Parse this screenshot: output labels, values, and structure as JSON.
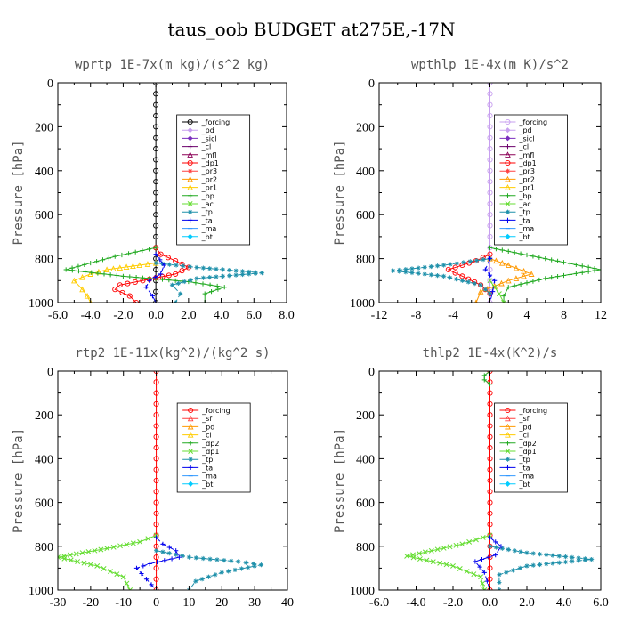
{
  "figure": {
    "title": "taus_oob  BUDGET at275E,-17N"
  },
  "chart_data": [
    {
      "type": "line",
      "title": "wprtp  1E-7x(m kg)/(s^2 kg)",
      "ylabel": "Pressure [hPa]",
      "xlim": [
        -6,
        8
      ],
      "ylim": [
        1000,
        0
      ],
      "xticks": [
        -6,
        -4,
        -2,
        0,
        2,
        4,
        6,
        8
      ],
      "xtick_labels": [
        "-6.0",
        "-4.0",
        "-2.0",
        "0.0",
        "2.0",
        "4.0",
        "6.0",
        "8.0"
      ],
      "yticks": [
        0,
        200,
        400,
        600,
        800,
        1000
      ],
      "legend": "top-right",
      "series": [
        {
          "name": "_forcing",
          "color": "#000000",
          "marker": "circle",
          "x": [
            0,
            0,
            0,
            0,
            0,
            0,
            0,
            0,
            0,
            0,
            0,
            0,
            0,
            0,
            0,
            0,
            0,
            0,
            0,
            0,
            0
          ],
          "y": [
            0,
            50,
            100,
            150,
            200,
            250,
            300,
            350,
            400,
            450,
            500,
            550,
            600,
            650,
            700,
            750,
            800,
            850,
            900,
            950,
            1000
          ]
        },
        {
          "name": "_pd",
          "color": "#c79fef",
          "marker": "diamond",
          "x": [],
          "y": []
        },
        {
          "name": "_sicl",
          "color": "#7b2fbe",
          "marker": "diamond",
          "x": [],
          "y": []
        },
        {
          "name": "_cl",
          "color": "#6b006b",
          "marker": "plus",
          "x": [],
          "y": []
        },
        {
          "name": "_mfl",
          "color": "#8b0057",
          "marker": "triangle",
          "x": [],
          "y": []
        },
        {
          "name": "_dp1",
          "color": "#ff0000",
          "marker": "circle",
          "x": [
            0,
            0.3,
            1.2,
            2.0,
            1.2,
            -0.8,
            -2.2,
            -2.5,
            -1.6,
            -1.2
          ],
          "y": [
            750,
            780,
            810,
            840,
            870,
            900,
            920,
            940,
            970,
            1000
          ]
        },
        {
          "name": "_pr3",
          "color": "#ff4040",
          "marker": "star",
          "x": [],
          "y": []
        },
        {
          "name": "_pr2",
          "color": "#ff9900",
          "marker": "triangle",
          "x": [],
          "y": []
        },
        {
          "name": "_pr1",
          "color": "#ffcc00",
          "marker": "triangle",
          "x": [
            0,
            -1.0,
            -3.0,
            -4.0,
            -5.0,
            -4.5,
            -4.2,
            -4.0
          ],
          "y": [
            820,
            830,
            850,
            870,
            900,
            940,
            970,
            1000
          ]
        },
        {
          "name": "_bp",
          "color": "#22aa22",
          "marker": "plus",
          "x": [
            0,
            -2.5,
            -5.5,
            -2.0,
            2.0,
            4.2,
            3.0,
            3.0
          ],
          "y": [
            750,
            790,
            850,
            880,
            905,
            930,
            960,
            1000
          ]
        },
        {
          "name": "_ac",
          "color": "#66dd33",
          "marker": "cross",
          "x": [],
          "y": []
        },
        {
          "name": "_tp",
          "color": "#1e90aa",
          "marker": "star",
          "x": [
            0,
            2.5,
            6.5,
            2.5,
            1.0,
            1.5,
            1.2
          ],
          "y": [
            820,
            840,
            865,
            890,
            920,
            960,
            1000
          ]
        },
        {
          "name": "_ta",
          "color": "#0000ee",
          "marker": "plus",
          "x": [
            0,
            0.5,
            0.3,
            -0.4,
            -0.6,
            -0.2,
            0
          ],
          "y": [
            780,
            830,
            870,
            900,
            930,
            970,
            1000
          ]
        },
        {
          "name": "_ma",
          "color": "#3399ff",
          "marker": "dash",
          "x": [],
          "y": []
        },
        {
          "name": "_bt",
          "color": "#00ccff",
          "marker": "diamond",
          "x": [],
          "y": []
        }
      ]
    },
    {
      "type": "line",
      "title": "wpthlp  1E-4x(m K)/s^2",
      "ylabel": "Pressure [hPa]",
      "xlim": [
        -12,
        12
      ],
      "ylim": [
        1000,
        0
      ],
      "xticks": [
        -12,
        -8,
        -4,
        0,
        4,
        8,
        12
      ],
      "xtick_labels": [
        "-12",
        "-8",
        "-4",
        "0",
        "4",
        "8",
        "12"
      ],
      "yticks": [
        0,
        200,
        400,
        600,
        800,
        1000
      ],
      "legend": "top-right",
      "series": [
        {
          "name": "_forcing",
          "color": "#c79fef",
          "marker": "circle",
          "x": [
            0,
            0,
            0,
            0,
            0,
            0,
            0,
            0,
            0,
            0,
            0,
            0,
            0,
            0,
            0,
            0,
            0,
            0,
            0,
            0,
            0
          ],
          "y": [
            0,
            50,
            100,
            150,
            200,
            250,
            300,
            350,
            400,
            450,
            500,
            550,
            600,
            650,
            700,
            750,
            800,
            850,
            900,
            950,
            1000
          ]
        },
        {
          "name": "_pd",
          "color": "#c79fef",
          "marker": "diamond",
          "x": [],
          "y": []
        },
        {
          "name": "_sicl",
          "color": "#7b2fbe",
          "marker": "diamond",
          "x": [],
          "y": []
        },
        {
          "name": "_cl",
          "color": "#6b006b",
          "marker": "plus",
          "x": [],
          "y": []
        },
        {
          "name": "_mfl",
          "color": "#8b0057",
          "marker": "triangle",
          "x": [],
          "y": []
        },
        {
          "name": "_dp1",
          "color": "#ff0000",
          "marker": "circle",
          "x": [
            0,
            -1.5,
            -4.5,
            -3.0,
            -1.0,
            0
          ],
          "y": [
            780,
            810,
            850,
            880,
            920,
            960
          ]
        },
        {
          "name": "_pr3",
          "color": "#ff4040",
          "marker": "star",
          "x": [],
          "y": []
        },
        {
          "name": "_pr2",
          "color": "#ff9900",
          "marker": "triangle",
          "x": [
            0,
            2.0,
            4.5,
            2.0,
            -1.0,
            -1.5
          ],
          "y": [
            800,
            830,
            870,
            900,
            950,
            1000
          ]
        },
        {
          "name": "_pr1",
          "color": "#ffcc00",
          "marker": "triangle",
          "x": [],
          "y": []
        },
        {
          "name": "_bp",
          "color": "#22aa22",
          "marker": "plus",
          "x": [
            0,
            6.0,
            12.0,
            6.0,
            2.0,
            1.5,
            1.5
          ],
          "y": [
            750,
            800,
            850,
            890,
            930,
            970,
            1000
          ]
        },
        {
          "name": "_ac",
          "color": "#66dd33",
          "marker": "cross",
          "x": [
            0,
            0.5,
            1.0,
            1.5
          ],
          "y": [
            900,
            930,
            960,
            1000
          ]
        },
        {
          "name": "_tp",
          "color": "#1e90aa",
          "marker": "star",
          "x": [
            0,
            -5.0,
            -10.5,
            -5.0,
            -1.0,
            0
          ],
          "y": [
            800,
            830,
            855,
            880,
            920,
            960
          ]
        },
        {
          "name": "_ta",
          "color": "#0000ee",
          "marker": "plus",
          "x": [
            0,
            -0.5,
            0.5,
            0.3,
            0
          ],
          "y": [
            800,
            850,
            900,
            950,
            1000
          ]
        },
        {
          "name": "_ma",
          "color": "#3399ff",
          "marker": "dash",
          "x": [],
          "y": []
        },
        {
          "name": "_bt",
          "color": "#00ccff",
          "marker": "diamond",
          "x": [],
          "y": []
        }
      ]
    },
    {
      "type": "line",
      "title": "rtp2  1E-11x(kg^2)/(kg^2 s)",
      "ylabel": "Pressure [hPa]",
      "xlim": [
        -30,
        40
      ],
      "ylim": [
        1000,
        0
      ],
      "xticks": [
        -30,
        -20,
        -10,
        0,
        10,
        20,
        30,
        40
      ],
      "xtick_labels": [
        "-30",
        "-20",
        "-10",
        "0",
        "10",
        "20",
        "30",
        "40"
      ],
      "yticks": [
        0,
        200,
        400,
        600,
        800,
        1000
      ],
      "legend": "top-right",
      "series": [
        {
          "name": "_forcing",
          "color": "#ff0000",
          "marker": "circle",
          "x": [
            0,
            0,
            0,
            0,
            0,
            0,
            0,
            0,
            0,
            0,
            0,
            0,
            0,
            0,
            0,
            0,
            0,
            0,
            0,
            0,
            0
          ],
          "y": [
            0,
            50,
            100,
            150,
            200,
            250,
            300,
            350,
            400,
            450,
            500,
            550,
            600,
            650,
            700,
            750,
            800,
            850,
            900,
            950,
            1000
          ]
        },
        {
          "name": "_sf",
          "color": "#ff4040",
          "marker": "triangle",
          "x": [],
          "y": []
        },
        {
          "name": "_pd",
          "color": "#ff9900",
          "marker": "triangle",
          "x": [],
          "y": []
        },
        {
          "name": "_cl",
          "color": "#ffcc00",
          "marker": "triangle",
          "x": [],
          "y": []
        },
        {
          "name": "_dp2",
          "color": "#22aa22",
          "marker": "plus",
          "x": [],
          "y": []
        },
        {
          "name": "_dp1",
          "color": "#66dd33",
          "marker": "cross",
          "x": [
            0,
            -5.0,
            -15.0,
            -30.0,
            -18.0,
            -10.0,
            -9.0,
            -8.0
          ],
          "y": [
            750,
            780,
            810,
            850,
            890,
            940,
            970,
            1000
          ]
        },
        {
          "name": "_tp",
          "color": "#1e90aa",
          "marker": "star",
          "x": [
            0,
            10.0,
            25.0,
            32.0,
            20.0,
            12.0,
            10.0
          ],
          "y": [
            820,
            850,
            870,
            885,
            920,
            960,
            1000
          ]
        },
        {
          "name": "_ta",
          "color": "#0000ee",
          "marker": "plus",
          "x": [
            0,
            2.0,
            6.0,
            7.0,
            -2.0,
            -6.0,
            -3.0,
            0
          ],
          "y": [
            760,
            790,
            820,
            850,
            880,
            900,
            950,
            1000
          ]
        },
        {
          "name": "_ma",
          "color": "#3399ff",
          "marker": "dash",
          "x": [],
          "y": []
        },
        {
          "name": "_bt",
          "color": "#00ccff",
          "marker": "diamond",
          "x": [],
          "y": []
        }
      ]
    },
    {
      "type": "line",
      "title": "thlp2  1E-4x(K^2)/s",
      "ylabel": "Pressure [hPa]",
      "xlim": [
        -6,
        6
      ],
      "ylim": [
        1000,
        0
      ],
      "xticks": [
        -6,
        -4,
        -2,
        0,
        2,
        4,
        6
      ],
      "xtick_labels": [
        "-6.0",
        "-4.0",
        "-2.0",
        "0.0",
        "2.0",
        "4.0",
        "6.0"
      ],
      "yticks": [
        0,
        200,
        400,
        600,
        800,
        1000
      ],
      "legend": "top-right",
      "series": [
        {
          "name": "_forcing",
          "color": "#ff0000",
          "marker": "circle",
          "x": [
            0,
            0,
            0,
            0,
            0,
            0,
            0,
            0,
            0,
            0,
            0,
            0,
            0,
            0,
            0,
            0,
            0,
            0,
            0,
            0,
            0
          ],
          "y": [
            0,
            50,
            100,
            150,
            200,
            250,
            300,
            350,
            400,
            450,
            500,
            550,
            600,
            650,
            700,
            750,
            800,
            850,
            900,
            950,
            1000
          ]
        },
        {
          "name": "_sf",
          "color": "#ff4040",
          "marker": "triangle",
          "x": [],
          "y": []
        },
        {
          "name": "_pd",
          "color": "#ff9900",
          "marker": "triangle",
          "x": [],
          "y": []
        },
        {
          "name": "_cl",
          "color": "#ffcc00",
          "marker": "triangle",
          "x": [],
          "y": []
        },
        {
          "name": "_dp2",
          "color": "#22aa22",
          "marker": "plus",
          "x": [
            0,
            -0.3,
            -0.3,
            0
          ],
          "y": [
            0,
            20,
            40,
            60
          ]
        },
        {
          "name": "_dp1",
          "color": "#66dd33",
          "marker": "cross",
          "x": [
            0,
            -1.5,
            -4.5,
            -2.0,
            -0.5,
            -0.3
          ],
          "y": [
            750,
            790,
            845,
            890,
            940,
            1000
          ]
        },
        {
          "name": "_tp",
          "color": "#1e90aa",
          "marker": "star",
          "x": [
            0,
            2.0,
            5.5,
            2.0,
            0.5,
            0.5
          ],
          "y": [
            800,
            830,
            860,
            890,
            930,
            1000
          ]
        },
        {
          "name": "_ta",
          "color": "#0000ee",
          "marker": "plus",
          "x": [
            0,
            0.6,
            0.3,
            -0.8,
            -0.3,
            0
          ],
          "y": [
            760,
            800,
            840,
            870,
            920,
            1000
          ]
        },
        {
          "name": "_ma",
          "color": "#3399ff",
          "marker": "dash",
          "x": [],
          "y": []
        },
        {
          "name": "_bt",
          "color": "#00ccff",
          "marker": "diamond",
          "x": [],
          "y": []
        }
      ]
    }
  ]
}
